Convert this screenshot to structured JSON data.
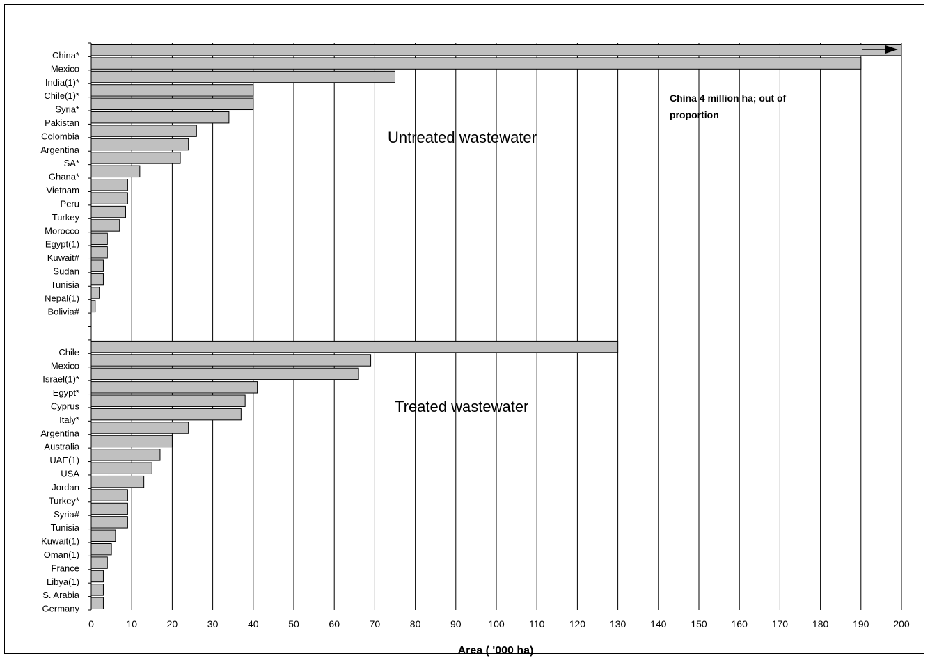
{
  "chart_data": {
    "type": "bar",
    "orientation": "horizontal",
    "xlabel": "Area ( '000 ha)",
    "xlim": [
      0,
      200
    ],
    "xticks": [
      "0",
      "10",
      "20",
      "30",
      "40",
      "50",
      "60",
      "70",
      "80",
      "90",
      "100",
      "110",
      "120",
      "130",
      "140",
      "150",
      "160",
      "170",
      "180",
      "190",
      "200"
    ],
    "grid": "vertical",
    "bar_color": "#c0c0c0",
    "annotation": "China 4 million ha; out of proportion",
    "groups": [
      {
        "name": "Untreated wastewater",
        "categories": [
          "China*",
          "Mexico",
          "India(1)*",
          "Chile(1)*",
          "Syria*",
          "Pakistan",
          "Colombia",
          "Argentina",
          "SA*",
          "Ghana*",
          "Vietnam",
          "Peru",
          "Turkey",
          "Morocco",
          "Egypt(1)",
          "Kuwait#",
          "Sudan",
          "Tunisia",
          "Nepal(1)",
          "Bolivia#"
        ],
        "values": [
          200,
          190,
          75,
          40,
          40,
          34,
          26,
          24,
          22,
          12,
          9,
          9,
          8.5,
          7,
          4,
          4,
          3,
          3,
          2,
          1
        ]
      },
      {
        "name": "Treated wastewater",
        "categories": [
          "Chile",
          "Mexico",
          "Israel(1)*",
          "Egypt*",
          "Cyprus",
          "Italy*",
          "Argentina",
          "Australia",
          "UAE(1)",
          "USA",
          "Jordan",
          "Turkey*",
          "Syria#",
          "Tunisia",
          "Kuwait(1)",
          "Oman(1)",
          "France",
          "Libya(1)",
          "S. Arabia",
          "Germany"
        ],
        "values": [
          130,
          69,
          66,
          41,
          38,
          37,
          24,
          20,
          17,
          15,
          13,
          9,
          9,
          9,
          6,
          5,
          4,
          3,
          3,
          3
        ]
      }
    ]
  }
}
